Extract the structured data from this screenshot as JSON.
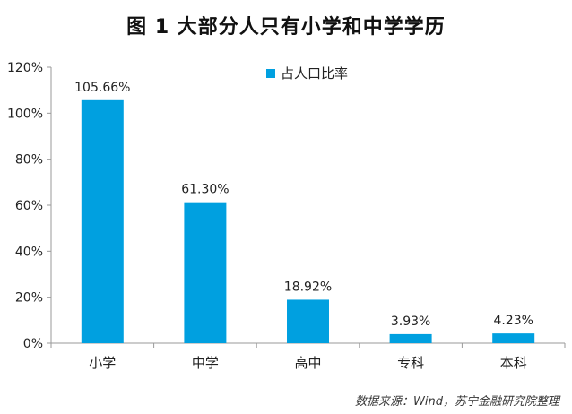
{
  "chart_data": {
    "type": "bar",
    "title": "图 1  大部分人只有小学和中学学历",
    "categories": [
      "小学",
      "中学",
      "高中",
      "专科",
      "本科"
    ],
    "series": [
      {
        "name": "占人口比率",
        "values": [
          105.66,
          61.3,
          18.92,
          3.93,
          4.23
        ]
      }
    ],
    "data_labels": [
      "105.66%",
      "61.30%",
      "18.92%",
      "3.93%",
      "4.23%"
    ],
    "y_ticks": [
      "0%",
      "20%",
      "40%",
      "60%",
      "80%",
      "100%",
      "120%"
    ],
    "ylim": [
      0,
      120
    ],
    "grid": false,
    "legend_position": "top",
    "colors": {
      "bar": "#00a0e0",
      "axis": "#9a9a9a"
    }
  },
  "source_note": "数据来源：Wind，苏宁金融研究院整理"
}
